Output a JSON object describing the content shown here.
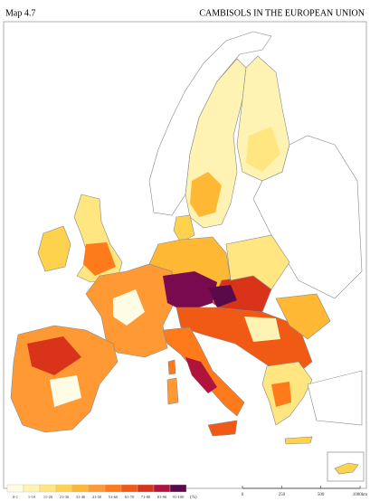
{
  "header": {
    "map_number": "Map 4.7",
    "title": "CAMBISOLS IN THE EUROPEAN UNION"
  },
  "legend": {
    "items": [
      {
        "label": "0-1",
        "color": "#fffce6"
      },
      {
        "label": "1-10",
        "color": "#fff3b3"
      },
      {
        "label": "11-20",
        "color": "#ffe680"
      },
      {
        "label": "21-30",
        "color": "#ffd24d"
      },
      {
        "label": "31-40",
        "color": "#ffb833"
      },
      {
        "label": "41-50",
        "color": "#ff9933"
      },
      {
        "label": "51-60",
        "color": "#ff7a1a"
      },
      {
        "label": "61-70",
        "color": "#f05a14"
      },
      {
        "label": "71-80",
        "color": "#d9341a"
      },
      {
        "label": "81-90",
        "color": "#b0143c"
      },
      {
        "label": "91-100",
        "color": "#5a0a4a"
      }
    ],
    "unit": "(%)"
  },
  "scale_bar": {
    "labels": [
      "0",
      "250",
      "500",
      "1000km"
    ]
  }
}
